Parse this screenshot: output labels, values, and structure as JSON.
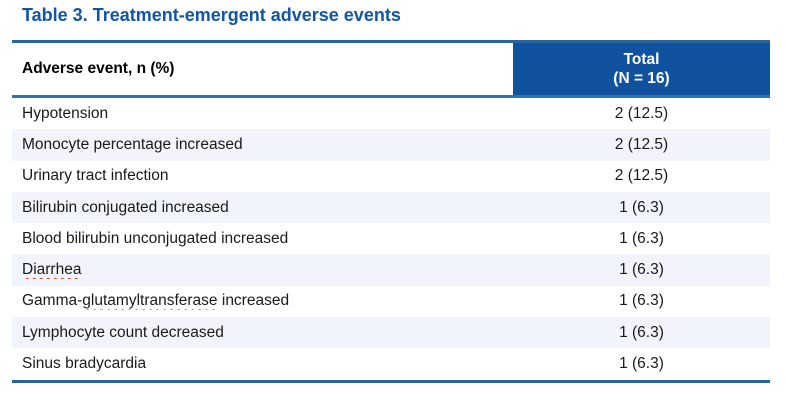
{
  "title": "Table 3. Treatment-emergent adverse events",
  "table": {
    "header": {
      "event_col": "Adverse event, n (%)",
      "total_col_line1": "Total",
      "total_col_line2": "(N = 16)"
    },
    "rows": [
      {
        "event": "Hypotension",
        "segments": [
          {
            "text": "Hypotension",
            "wavy": false
          }
        ],
        "value": "2 (12.5)"
      },
      {
        "event": "Monocyte percentage increased",
        "segments": [
          {
            "text": "Monocyte percentage increased",
            "wavy": false
          }
        ],
        "value": "2 (12.5)"
      },
      {
        "event": "Urinary tract infection",
        "segments": [
          {
            "text": "Urinary tract infection",
            "wavy": false
          }
        ],
        "value": "2 (12.5)"
      },
      {
        "event": "Bilirubin conjugated increased",
        "segments": [
          {
            "text": "Bilirubin conjugated increased",
            "wavy": false
          }
        ],
        "value": "1 (6.3)"
      },
      {
        "event": "Blood bilirubin unconjugated increased",
        "segments": [
          {
            "text": "Blood bilirubin unconjugated increased",
            "wavy": false
          }
        ],
        "value": "1 (6.3)"
      },
      {
        "event": "Diarrhea",
        "segments": [
          {
            "text": "Diarrhea",
            "wavy": true
          }
        ],
        "value": "1 (6.3)"
      },
      {
        "event": "Gamma-glutamyltransferase increased",
        "segments": [
          {
            "text": "Gamma-",
            "wavy": false
          },
          {
            "text": "glutamyltransferase",
            "wavy": true
          },
          {
            "text": " increased",
            "wavy": false
          }
        ],
        "value": "1 (6.3)"
      },
      {
        "event": "Lymphocyte count decreased",
        "segments": [
          {
            "text": "Lymphocyte count decreased",
            "wavy": false
          }
        ],
        "value": "1 (6.3)"
      },
      {
        "event": "Sinus bradycardia",
        "segments": [
          {
            "text": "Sinus bradycardia",
            "wavy": false
          }
        ],
        "value": "1 (6.3)"
      }
    ]
  },
  "colors": {
    "title_blue": "#1156A5",
    "header_fill": "#10529E",
    "rule_blue": "#2766A0",
    "underline_blue": "#2E74B5",
    "stripe": "#F1F5FB",
    "squiggle_red": "#E0422E"
  }
}
